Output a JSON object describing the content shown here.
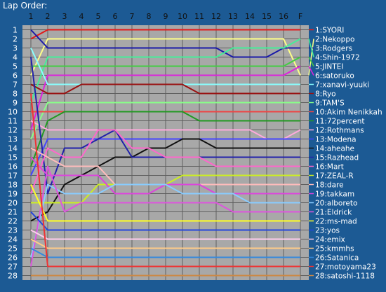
{
  "title": "Lap Order:",
  "chart_data": {
    "type": "line",
    "title": "Lap Order:",
    "x_ticks": [
      "1",
      "2",
      "3",
      "4",
      "5",
      "6",
      "7",
      "8",
      "9",
      "10",
      "11",
      "12",
      "13",
      "14",
      "15",
      "16",
      "F"
    ],
    "positions": [
      1,
      2,
      3,
      4,
      5,
      6,
      7,
      8,
      9,
      10,
      11,
      12,
      13,
      14,
      15,
      16,
      17,
      18,
      19,
      20,
      21,
      22,
      23,
      24,
      25,
      26,
      27,
      28
    ],
    "series": [
      {
        "name": "1:SYORI",
        "color": "#e21a1a",
        "values": [
          2,
          1,
          1,
          1,
          1,
          1,
          1,
          1,
          1,
          1,
          1,
          1,
          1,
          1,
          1,
          1,
          1
        ]
      },
      {
        "name": "2:Nekoppo",
        "color": "#ffff88",
        "values": [
          6,
          2,
          2,
          2,
          2,
          2,
          2,
          2,
          2,
          2,
          2,
          2,
          2,
          2,
          2,
          2,
          6
        ]
      },
      {
        "name": "3:Rodgers",
        "color": "#1a1aa8",
        "values": [
          1,
          3,
          3,
          3,
          3,
          3,
          3,
          3,
          3,
          3,
          3,
          3,
          4,
          4,
          4,
          3,
          3
        ]
      },
      {
        "name": "4:Shin-1972",
        "color": "#44ee99",
        "values": [
          9,
          4,
          4,
          4,
          4,
          4,
          4,
          4,
          4,
          4,
          4,
          4,
          3,
          3,
          3,
          3,
          2
        ]
      },
      {
        "name": "5:JINTEI",
        "color": "#44cc44",
        "values": [
          5,
          5,
          5,
          5,
          5,
          5,
          5,
          5,
          5,
          5,
          5,
          5,
          5,
          5,
          5,
          5,
          4
        ]
      },
      {
        "name": "6:satoruko",
        "color": "#dd22dd",
        "values": [
          12,
          6,
          6,
          6,
          6,
          6,
          6,
          6,
          6,
          6,
          6,
          6,
          6,
          6,
          6,
          6,
          5
        ]
      },
      {
        "name": "7:xanavi-yuuki",
        "color": "#88ffff",
        "values": [
          3,
          7,
          7,
          7,
          7,
          7,
          7,
          7,
          7,
          7,
          7,
          7,
          7,
          7,
          7,
          7,
          7
        ]
      },
      {
        "name": "8:Ryo",
        "color": "#991111",
        "values": [
          7,
          8,
          8,
          7,
          7,
          7,
          7,
          7,
          7,
          7,
          8,
          8,
          8,
          8,
          8,
          8,
          8
        ]
      },
      {
        "name": "9:TAM'S",
        "color": "#88ff88",
        "values": [
          13,
          9,
          9,
          9,
          9,
          9,
          9,
          9,
          9,
          9,
          9,
          9,
          9,
          9,
          9,
          9,
          9
        ]
      },
      {
        "name": "10:Akim Nenikkah",
        "color": "#ee4444",
        "values": [
          10,
          10,
          10,
          10,
          10,
          10,
          10,
          10,
          10,
          10,
          10,
          10,
          10,
          10,
          10,
          10,
          10
        ]
      },
      {
        "name": "11:72percent",
        "color": "#229922",
        "values": [
          16,
          11,
          10,
          10,
          10,
          10,
          10,
          10,
          10,
          10,
          11,
          11,
          11,
          11,
          11,
          11,
          11
        ]
      },
      {
        "name": "12:Rothmans",
        "color": "#ffaadd",
        "values": [
          11,
          12,
          12,
          12,
          12,
          12,
          12,
          12,
          12,
          12,
          12,
          12,
          12,
          12,
          13,
          13,
          12
        ]
      },
      {
        "name": "13:Modena",
        "color": "#4444ff",
        "values": [
          17,
          13,
          13,
          13,
          13,
          13,
          13,
          13,
          13,
          13,
          13,
          13,
          13,
          13,
          13,
          13,
          13
        ]
      },
      {
        "name": "14:aheahe",
        "color": "#111111",
        "values": [
          22,
          21,
          18,
          17,
          16,
          15,
          15,
          14,
          14,
          13,
          13,
          14,
          14,
          14,
          14,
          14,
          14
        ]
      },
      {
        "name": "15:Razhead",
        "color": "#2222aa",
        "values": [
          4,
          19,
          14,
          14,
          13,
          12,
          15,
          15,
          15,
          15,
          15,
          15,
          15,
          15,
          15,
          15,
          15
        ]
      },
      {
        "name": "16:Mart",
        "color": "#ff66cc",
        "values": [
          19,
          14,
          15,
          15,
          12,
          12,
          14,
          14,
          15,
          15,
          15,
          16,
          16,
          16,
          16,
          16,
          16
        ]
      },
      {
        "name": "17:ZEAL-R",
        "color": "#ccee22",
        "values": [
          20,
          20,
          20,
          20,
          18,
          18,
          18,
          18,
          18,
          17,
          17,
          17,
          17,
          17,
          17,
          17,
          17
        ]
      },
      {
        "name": "18:dare",
        "color": "#ffbbbb",
        "values": [
          14,
          15,
          16,
          16,
          16,
          18,
          18,
          18,
          18,
          18,
          18,
          18,
          18,
          18,
          18,
          18,
          18
        ]
      },
      {
        "name": "19:takkam",
        "color": "#dd44dd",
        "values": [
          15,
          17,
          17,
          17,
          17,
          19,
          19,
          19,
          18,
          18,
          18,
          19,
          19,
          19,
          19,
          19,
          19
        ]
      },
      {
        "name": "20:alboreto",
        "color": "#88ccff",
        "values": [
          26,
          18,
          19,
          19,
          19,
          18,
          18,
          18,
          18,
          19,
          19,
          19,
          19,
          20,
          20,
          20,
          20
        ]
      },
      {
        "name": "21:Eldrick",
        "color": "#dd55dd",
        "values": [
          27,
          16,
          21,
          20,
          20,
          20,
          20,
          20,
          20,
          20,
          20,
          20,
          21,
          21,
          21,
          21,
          21
        ]
      },
      {
        "name": "22:ms-mad",
        "color": "#ffff22",
        "values": [
          18,
          22,
          22,
          22,
          22,
          22,
          22,
          22,
          22,
          22,
          22,
          22,
          22,
          22,
          22,
          22,
          22
        ]
      },
      {
        "name": "23:yos",
        "color": "#2244dd",
        "values": [
          21,
          23,
          23,
          23,
          23,
          23,
          23,
          23,
          23,
          23,
          23,
          23,
          23,
          23,
          23,
          23,
          23
        ]
      },
      {
        "name": "24:emix",
        "color": "#ffccee",
        "values": [
          23,
          24,
          24,
          24,
          24,
          24,
          24,
          24,
          24,
          24,
          24,
          24,
          24,
          24,
          24,
          24,
          24
        ]
      },
      {
        "name": "25:kmmhs",
        "color": "#ffcc88",
        "values": [
          24,
          25,
          25,
          25,
          25,
          25,
          25,
          25,
          25,
          25,
          25,
          25,
          25,
          25,
          25,
          25,
          25
        ]
      },
      {
        "name": "26:Satanica",
        "color": "#3388dd",
        "values": [
          25,
          26,
          26,
          26,
          26,
          26,
          26,
          26,
          26,
          26,
          26,
          26,
          26,
          26,
          26,
          26,
          26
        ]
      },
      {
        "name": "27:motoyama23",
        "color": "#ee3333",
        "values": [
          8,
          27,
          27,
          27,
          27,
          27,
          27,
          27,
          27,
          27,
          27,
          27,
          27,
          27,
          27,
          27,
          27
        ]
      },
      {
        "name": "28:satoshi-1118",
        "color": "#cc8844",
        "values": [
          28,
          28,
          28,
          28,
          28,
          28,
          28,
          28,
          28,
          28,
          28,
          28,
          28,
          28,
          28,
          28,
          28
        ]
      }
    ],
    "grid": true,
    "legend": "right"
  },
  "colors": {
    "background": "#1c5a94",
    "plot": "#a8a8a8",
    "grid": "#5f5f5f",
    "text": "#ffffff"
  }
}
